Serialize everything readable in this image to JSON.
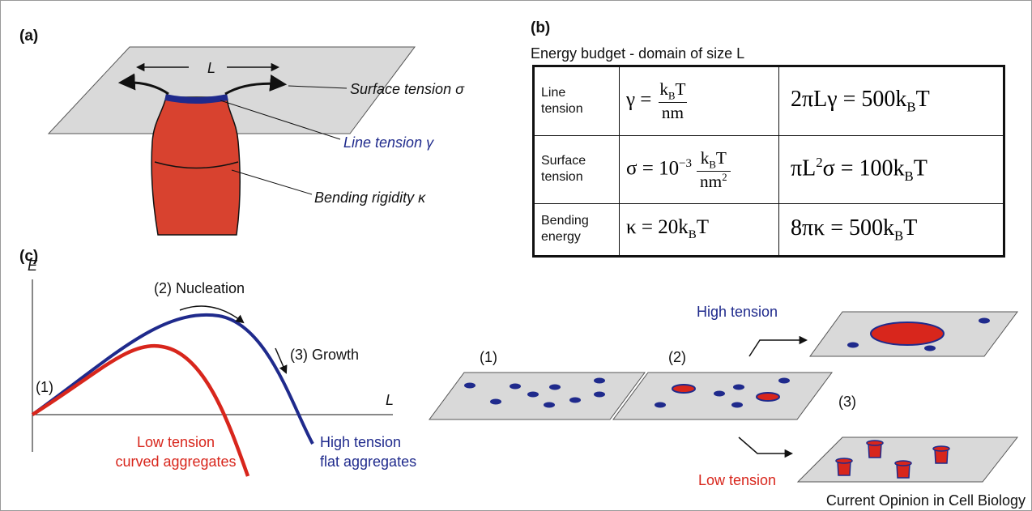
{
  "panel_a": {
    "label": "(a)",
    "length_label": "L",
    "surface_tension": "Surface tension σ",
    "line_tension": "Line tension γ",
    "bending_rigidity": "Bending rigidity κ"
  },
  "panel_b": {
    "label": "(b)",
    "caption": "Energy budget - domain of size L",
    "table": {
      "rows": [
        {
          "label": "Line tension",
          "definition": [
            {
              "text": "γ ="
            },
            {
              "numerator": [
                {
                  "text": "k"
                },
                {
                  "text": "B",
                  "style": "sub"
                },
                {
                  "text": "T"
                }
              ],
              "denominator": [
                {
                  "text": "nm"
                }
              ]
            }
          ],
          "energy": [
            {
              "text": "2πLγ = 500k"
            },
            {
              "text": "B",
              "style": "sub"
            },
            {
              "text": "T"
            }
          ]
        },
        {
          "label": "Surface tension",
          "definition": [
            {
              "text": "σ = 10"
            },
            {
              "text": "−3",
              "style": "sup"
            },
            {
              "numerator": [
                {
                  "text": "k"
                },
                {
                  "text": "B",
                  "style": "sub"
                },
                {
                  "text": "T"
                }
              ],
              "denominator": [
                {
                  "text": "nm"
                },
                {
                  "text": "2",
                  "style": "sup"
                }
              ]
            }
          ],
          "energy": [
            {
              "text": "πL"
            },
            {
              "text": "2",
              "style": "sup"
            },
            {
              "text": "σ = 100k"
            },
            {
              "text": "B",
              "style": "sub"
            },
            {
              "text": "T"
            }
          ]
        },
        {
          "label": "Bending energy",
          "definition": [
            {
              "text": "κ = 20k"
            },
            {
              "text": "B",
              "style": "sub"
            },
            {
              "text": "T"
            }
          ],
          "energy": [
            {
              "text": "8πκ = 500k"
            },
            {
              "text": "B",
              "style": "sub"
            },
            {
              "text": "T"
            }
          ]
        }
      ]
    }
  },
  "panel_c": {
    "label": "(c)",
    "y_axis": "E",
    "x_axis": "L",
    "nucleation": "(2) Nucleation",
    "growth": "(3) Growth",
    "start": "(1)",
    "low_tension_curve": [
      "Low tension",
      "curved aggregates"
    ],
    "high_tension_curve": [
      "High tension",
      "flat aggregates"
    ],
    "stage_1": "(1)",
    "stage_2": "(2)",
    "stage_3": "(3)",
    "high_tension": "High tension",
    "low_tension": "Low tension"
  },
  "credit": "Current Opinion in Cell Biology"
}
